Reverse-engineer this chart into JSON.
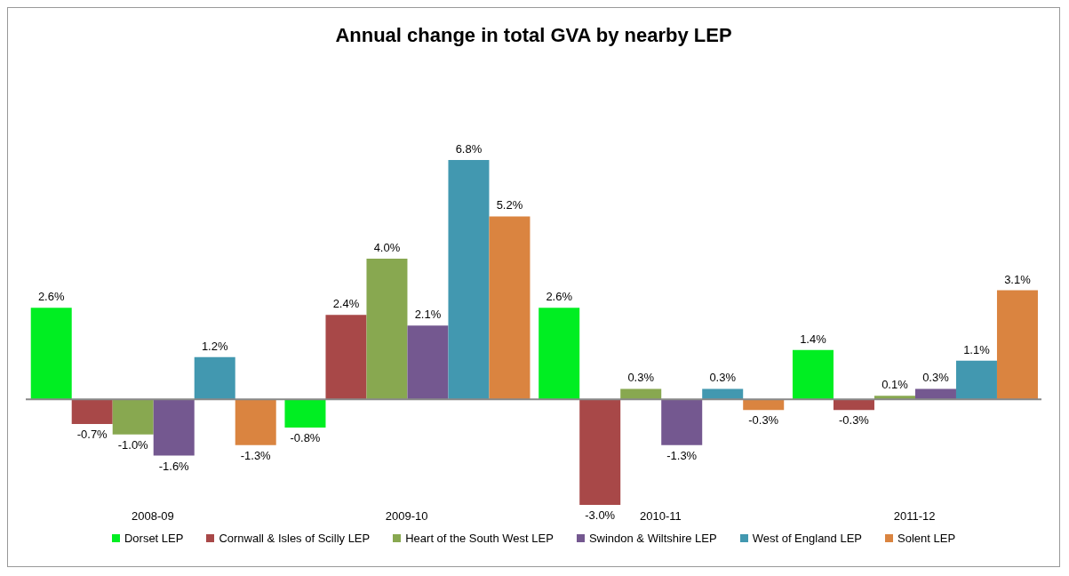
{
  "chart_data": {
    "type": "bar",
    "title": "Annual change in total GVA by nearby LEP",
    "categories": [
      "2008-09",
      "2009-10",
      "2010-11",
      "2011-12"
    ],
    "legend": "bottom",
    "series": [
      {
        "name": "Dorset LEP",
        "color": "#00ee22",
        "values": [
          2.6,
          -0.8,
          2.6,
          1.4
        ],
        "value_labels": [
          "2.6%",
          "-0.8%",
          "2.6%",
          "1.4%"
        ]
      },
      {
        "name": "Cornwall & Isles of Scilly LEP",
        "color": "#a84848",
        "values": [
          -0.7,
          2.4,
          -3.0,
          -0.3
        ],
        "value_labels": [
          "-0.7%",
          "2.4%",
          "-3.0%",
          "-0.3%"
        ]
      },
      {
        "name": "Heart of the South West LEP",
        "color": "#88a850",
        "values": [
          -1.0,
          4.0,
          0.3,
          0.1
        ],
        "value_labels": [
          "-1.0%",
          "4.0%",
          "0.3%",
          "0.1%"
        ]
      },
      {
        "name": "Swindon & Wiltshire LEP",
        "color": "#745890",
        "values": [
          -1.6,
          2.1,
          -1.3,
          0.3
        ],
        "value_labels": [
          "-1.6%",
          "2.1%",
          "-1.3%",
          "0.3%"
        ]
      },
      {
        "name": "West of England LEP",
        "color": "#4298b0",
        "values": [
          1.2,
          6.8,
          0.3,
          1.1
        ],
        "value_labels": [
          "1.2%",
          "6.8%",
          "0.3%",
          "1.1%"
        ]
      },
      {
        "name": "Solent LEP",
        "color": "#da8440",
        "values": [
          -1.3,
          5.2,
          -0.3,
          3.1
        ],
        "value_labels": [
          "-1.3%",
          "5.2%",
          "-0.3%",
          "3.1%"
        ]
      }
    ]
  }
}
